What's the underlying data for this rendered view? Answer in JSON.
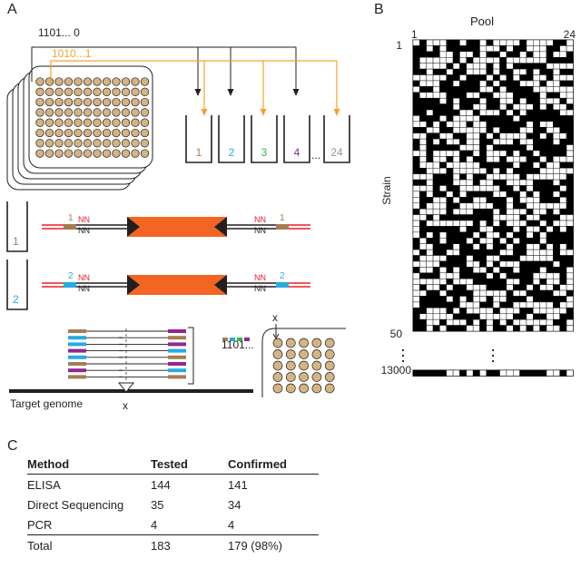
{
  "panels": {
    "a": "A",
    "b": "B",
    "c": "C"
  },
  "panel_a": {
    "code_black": "1101... 0",
    "code_orange": "1010...1",
    "pool_labels": [
      "1",
      "2",
      "3",
      "4",
      "24"
    ],
    "ellipsis": "...",
    "construct_labels": {
      "nn": "NN",
      "pool1": "1",
      "pool2": "2"
    },
    "barcode_text": "1101...",
    "insertion_label": "x",
    "plate_x_label": "x",
    "target_genome": "Target genome",
    "colors": {
      "orange": "#f5a22d",
      "brown": "#a57c52",
      "cyan": "#27aae1",
      "green": "#39b54a",
      "purple": "#92278f",
      "gray": "#939598",
      "red": "#ed1c24",
      "transposon": "#f26522",
      "well": "#d4b483"
    }
  },
  "panel_b": {
    "title": "Pool",
    "pool_start": "1",
    "pool_end": "24",
    "strain_label": "Strain",
    "strain_start": "1",
    "strain_end": "50",
    "last_strain": "13000"
  },
  "panel_c": {
    "headers": [
      "Method",
      "Tested",
      "Confirmed"
    ],
    "rows": [
      [
        "ELISA",
        "144",
        "141"
      ],
      [
        "Direct Sequencing",
        "35",
        "34"
      ],
      [
        "PCR",
        "4",
        "4"
      ]
    ],
    "total": [
      "Total",
      "183",
      "179 (98%)"
    ]
  }
}
